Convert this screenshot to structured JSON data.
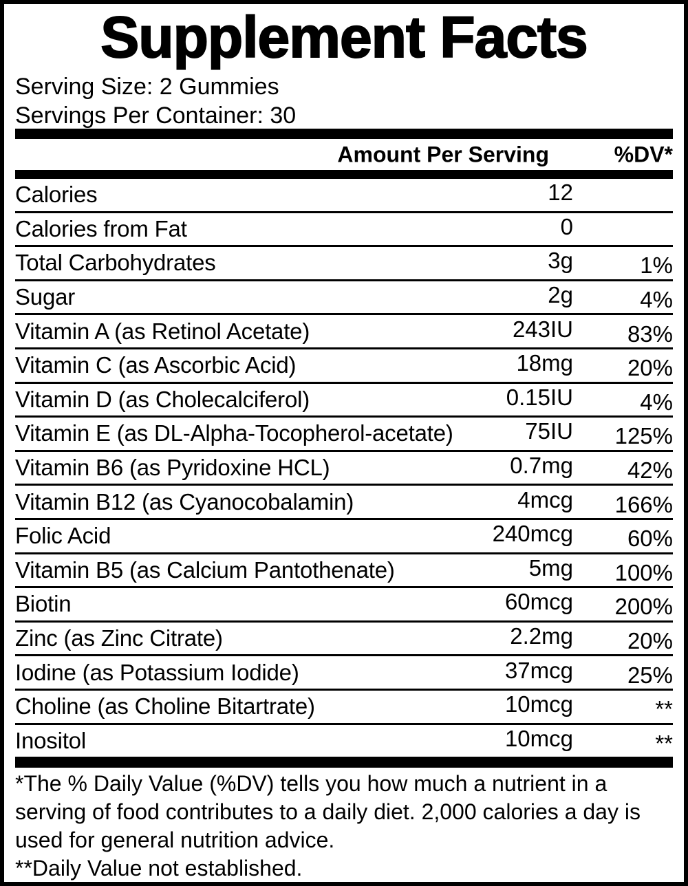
{
  "label": {
    "title": "Supplement Facts",
    "serving_size": "Serving Size: 2 Gummies",
    "servings_per_container": "Servings Per Container: 30",
    "columns": {
      "amount": "Amount Per Serving",
      "dv": "%DV*"
    },
    "rows": [
      {
        "name": "Calories",
        "amount": "12",
        "dv": ""
      },
      {
        "name": "Calories from Fat",
        "amount": "0",
        "dv": ""
      },
      {
        "name": "Total Carbohydrates",
        "amount": "3g",
        "dv": "1%"
      },
      {
        "name": "Sugar",
        "amount": "2g",
        "dv": "4%"
      },
      {
        "name": "Vitamin A (as Retinol Acetate)",
        "amount": "243IU",
        "dv": "83%"
      },
      {
        "name": "Vitamin C (as Ascorbic Acid)",
        "amount": "18mg",
        "dv": "20%"
      },
      {
        "name": "Vitamin D (as Cholecalciferol)",
        "amount": "0.15IU",
        "dv": "4%"
      },
      {
        "name": "Vitamin E (as DL-Alpha-Tocopherol-acetate)",
        "amount": "75IU",
        "dv": "125%"
      },
      {
        "name": "Vitamin B6 (as Pyridoxine HCL)",
        "amount": "0.7mg",
        "dv": "42%"
      },
      {
        "name": "Vitamin B12 (as Cyanocobalamin)",
        "amount": "4mcg",
        "dv": "166%"
      },
      {
        "name": "Folic Acid",
        "amount": "240mcg",
        "dv": "60%"
      },
      {
        "name": "Vitamin B5 (as Calcium Pantothenate)",
        "amount": "5mg",
        "dv": "100%"
      },
      {
        "name": "Biotin",
        "amount": "60mcg",
        "dv": "200%"
      },
      {
        "name": "Zinc (as Zinc Citrate)",
        "amount": "2.2mg",
        "dv": "20%"
      },
      {
        "name": "Iodine (as Potassium Iodide)",
        "amount": "37mcg",
        "dv": "25%"
      },
      {
        "name": "Choline (as Choline Bitartrate)",
        "amount": "10mcg",
        "dv": "**"
      },
      {
        "name": "Inositol",
        "amount": "10mcg",
        "dv": "**"
      }
    ],
    "footnotes": {
      "dv_note": "*The % Daily Value (%DV) tells you how much a nutrient in a serving of food contributes to a daily diet. 2,000 calories a day is used for general nutrition advice.",
      "not_established_note": "**Daily Value not established."
    },
    "colors": {
      "ink": "#000000",
      "paper": "#ffffff"
    }
  }
}
